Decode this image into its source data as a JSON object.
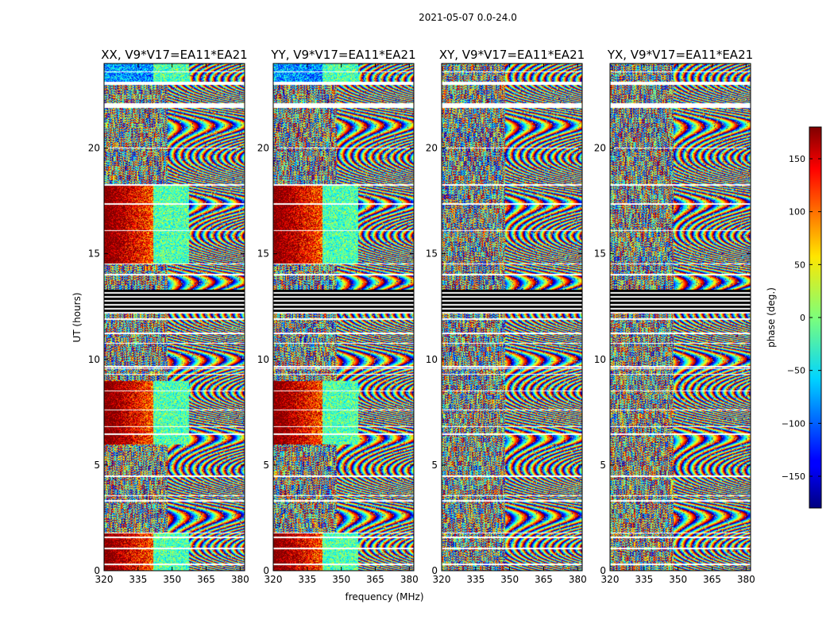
{
  "chart_data": {
    "type": "heatmap",
    "suptitle": "2021-05-07 0.0-24.0",
    "xlabel": "frequency (MHz)",
    "ylabel": "UT (hours)",
    "xlim": [
      320,
      382
    ],
    "ylim": [
      0,
      24
    ],
    "xticks": [
      "320",
      "335",
      "350",
      "365",
      "380"
    ],
    "xtick_values": [
      320,
      335,
      350,
      365,
      380
    ],
    "yticks": [
      "0",
      "5",
      "10",
      "15",
      "20"
    ],
    "ytick_values": [
      0,
      5,
      10,
      15,
      20
    ],
    "panels": [
      {
        "title": "XX, V9*V17=EA11*EA21",
        "pattern": "parallel"
      },
      {
        "title": "YY, V9*V17=EA11*EA21",
        "pattern": "parallel"
      },
      {
        "title": "XY, V9*V17=EA11*EA21",
        "pattern": "cross"
      },
      {
        "title": "YX, V9*V17=EA11*EA21",
        "pattern": "cross"
      }
    ],
    "colorbar": {
      "label": "phase (deg.)",
      "range": [
        -180,
        180
      ],
      "ticks": [
        "150",
        "100",
        "50",
        "0",
        "−50",
        "−100",
        "−150"
      ],
      "tick_values": [
        150,
        100,
        50,
        0,
        -50,
        -100,
        -150
      ],
      "colormap": "jet"
    },
    "flagged_bands_hours": [
      [
        0.3,
        0.35
      ],
      [
        1.05,
        1.12
      ],
      [
        1.55,
        1.62
      ],
      [
        1.78,
        1.83
      ],
      [
        3.3,
        3.35
      ],
      [
        3.55,
        3.6
      ],
      [
        4.45,
        4.52
      ],
      [
        6.45,
        6.5
      ],
      [
        6.8,
        6.85
      ],
      [
        7.6,
        7.65
      ],
      [
        8.5,
        8.55
      ],
      [
        9.3,
        9.35
      ],
      [
        9.55,
        9.6
      ],
      [
        9.65,
        9.7
      ],
      [
        10.75,
        10.8
      ],
      [
        11.2,
        11.3
      ],
      [
        11.9,
        11.95
      ],
      [
        14.0,
        14.05
      ],
      [
        14.5,
        14.55
      ],
      [
        16.1,
        16.15
      ],
      [
        17.35,
        17.4
      ],
      [
        18.25,
        18.3
      ],
      [
        20.0,
        20.05
      ],
      [
        21.9,
        22.15
      ],
      [
        23.0,
        23.15
      ],
      [
        23.6,
        23.65
      ]
    ],
    "flagged_black_band_hours": [
      12.2,
      13.3
    ]
  }
}
